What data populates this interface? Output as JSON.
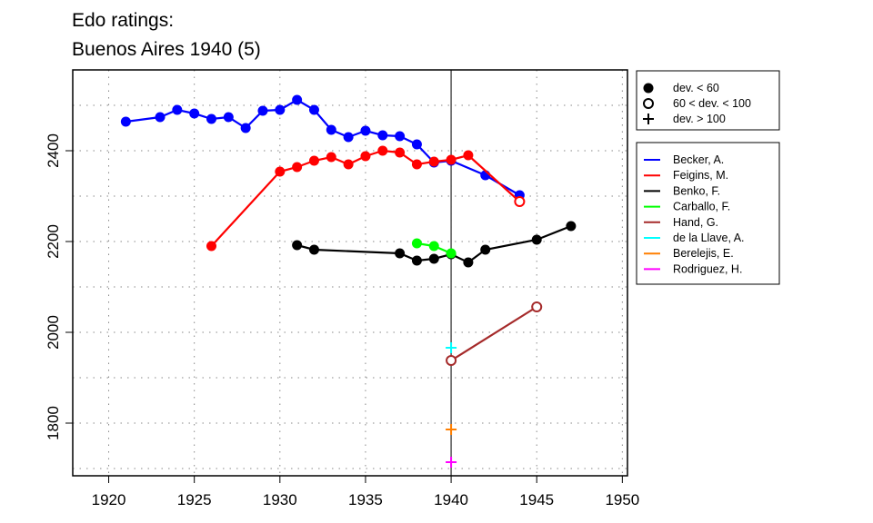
{
  "chart_data": {
    "type": "line",
    "title": [
      "Edo ratings:",
      "Buenos Aires 1940 (5)"
    ],
    "xlabel": "",
    "ylabel": "",
    "xlim": [
      1917.9,
      1950.3
    ],
    "ylim": [
      1684,
      2578
    ],
    "xticks": [
      1920,
      1925,
      1930,
      1935,
      1940,
      1945,
      1950
    ],
    "yticks": [
      1800,
      2000,
      2200,
      2400
    ],
    "grid": true,
    "reference_line_x": 1940,
    "marker_legend": [
      {
        "symbol": "filled",
        "label": "dev. < 60"
      },
      {
        "symbol": "open",
        "label": "60 < dev. < 100"
      },
      {
        "symbol": "plus",
        "label": "dev. > 100"
      }
    ],
    "legend_position": "right",
    "series": [
      {
        "name": "Becker, A.",
        "color": "#0000ff",
        "points": [
          [
            1921,
            2464,
            "filled"
          ],
          [
            1923,
            2474,
            "filled"
          ],
          [
            1924,
            2490,
            "filled"
          ],
          [
            1925,
            2482,
            "filled"
          ],
          [
            1926,
            2470,
            "filled"
          ],
          [
            1927,
            2474,
            "filled"
          ],
          [
            1928,
            2450,
            "filled"
          ],
          [
            1929,
            2488,
            "filled"
          ],
          [
            1930,
            2490,
            "filled"
          ],
          [
            1931,
            2512,
            "filled"
          ],
          [
            1932,
            2490,
            "filled"
          ],
          [
            1933,
            2446,
            "filled"
          ],
          [
            1934,
            2430,
            "filled"
          ],
          [
            1935,
            2444,
            "filled"
          ],
          [
            1936,
            2434,
            "filled"
          ],
          [
            1937,
            2432,
            "filled"
          ],
          [
            1938,
            2414,
            "filled"
          ],
          [
            1939,
            2374,
            "filled"
          ],
          [
            1940,
            2378,
            "filled"
          ],
          [
            1942,
            2346,
            "filled"
          ],
          [
            1944,
            2302,
            "filled"
          ]
        ]
      },
      {
        "name": "Feigins, M.",
        "color": "#ff0000",
        "points": [
          [
            1926,
            2190,
            "filled"
          ],
          [
            1930,
            2354,
            "filled"
          ],
          [
            1931,
            2364,
            "filled"
          ],
          [
            1932,
            2378,
            "filled"
          ],
          [
            1933,
            2386,
            "filled"
          ],
          [
            1934,
            2370,
            "filled"
          ],
          [
            1935,
            2388,
            "filled"
          ],
          [
            1936,
            2400,
            "filled"
          ],
          [
            1937,
            2396,
            "filled"
          ],
          [
            1938,
            2370,
            "filled"
          ],
          [
            1939,
            2376,
            "filled"
          ],
          [
            1940,
            2380,
            "filled"
          ],
          [
            1941,
            2390,
            "filled"
          ],
          [
            1944,
            2288,
            "open"
          ]
        ]
      },
      {
        "name": "Benko, F.",
        "color": "#000000",
        "points": [
          [
            1931,
            2192,
            "filled"
          ],
          [
            1932,
            2182,
            "filled"
          ],
          [
            1937,
            2174,
            "filled"
          ],
          [
            1938,
            2158,
            "filled"
          ],
          [
            1939,
            2162,
            "filled"
          ],
          [
            1940,
            2172,
            "filled"
          ],
          [
            1941,
            2154,
            "filled"
          ],
          [
            1942,
            2182,
            "filled"
          ],
          [
            1945,
            2204,
            "filled"
          ],
          [
            1947,
            2234,
            "filled"
          ]
        ]
      },
      {
        "name": "Carballo, F.",
        "color": "#00ff00",
        "points": [
          [
            1938,
            2196,
            "filled"
          ],
          [
            1939,
            2190,
            "filled"
          ],
          [
            1940,
            2174,
            "filled"
          ]
        ]
      },
      {
        "name": "Hand, G.",
        "color": "#a52a2a",
        "points": [
          [
            1940,
            1938,
            "open"
          ],
          [
            1945,
            2056,
            "open"
          ]
        ]
      },
      {
        "name": "de la Llave, A.",
        "color": "#00ffff",
        "points": [
          [
            1940,
            1966,
            "plus"
          ]
        ]
      },
      {
        "name": "Berelejis, E.",
        "color": "#ff7f00",
        "points": [
          [
            1940,
            1786,
            "plus"
          ]
        ]
      },
      {
        "name": "Rodriguez, H.",
        "color": "#ff00ff",
        "points": [
          [
            1940,
            1714,
            "plus"
          ]
        ]
      }
    ]
  }
}
